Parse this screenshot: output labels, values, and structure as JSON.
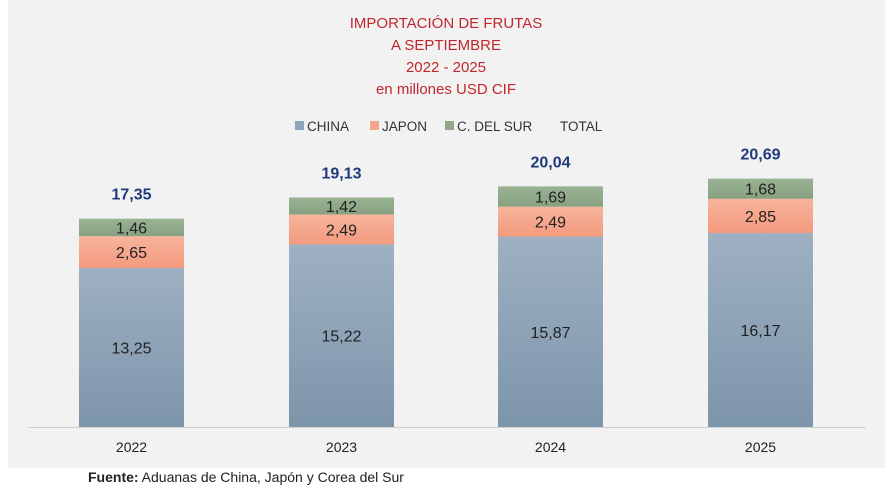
{
  "chart_data": {
    "type": "bar",
    "stacked": true,
    "title": [
      "IMPORTACIÓN DE FRUTAS",
      "A SEPTIEMBRE",
      "2022 - 2025",
      "en millones USD CIF"
    ],
    "categories": [
      "2022",
      "2023",
      "2024",
      "2025"
    ],
    "series": [
      {
        "name": "CHINA",
        "values": [
          13.25,
          15.22,
          15.87,
          16.17
        ],
        "labels": [
          "13,25",
          "15,22",
          "15,87",
          "16,17"
        ],
        "color": "#8ea4b8"
      },
      {
        "name": "JAPON",
        "values": [
          2.65,
          2.49,
          2.49,
          2.85
        ],
        "labels": [
          "2,65",
          "2,49",
          "2,49",
          "2,85"
        ],
        "color": "#f4a58a"
      },
      {
        "name": "C. DEL SUR",
        "values": [
          1.46,
          1.42,
          1.69,
          1.68
        ],
        "labels": [
          "1,46",
          "1,42",
          "1,69",
          "1,68"
        ],
        "color": "#8fa88a"
      }
    ],
    "total": {
      "name": "TOTAL",
      "values": [
        17.35,
        19.13,
        20.04,
        20.69
      ],
      "labels": [
        "17,35",
        "19,13",
        "20,04",
        "20,69"
      ]
    },
    "legend": "top",
    "grid": false,
    "background": "#f2f2f2"
  },
  "source": {
    "label": "Fuente:",
    "text": " Aduanas de China, Japón y Corea del Sur"
  }
}
